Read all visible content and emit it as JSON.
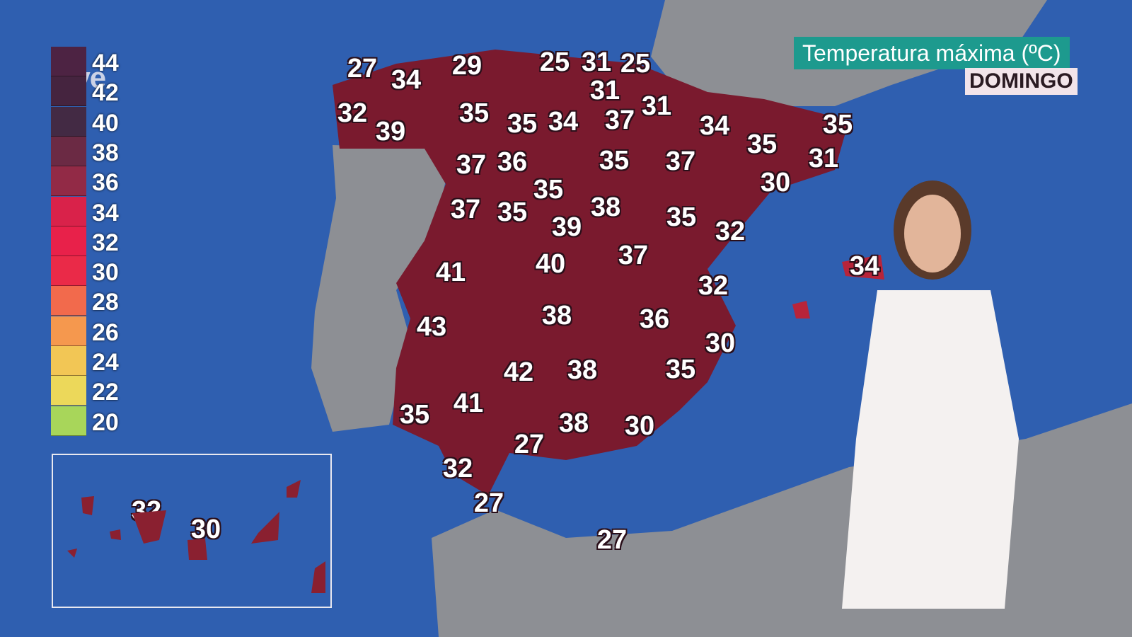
{
  "broadcaster": {
    "logo": "rtve"
  },
  "header": {
    "title": "Temperatura máxima (ºC)",
    "day": "DOMINGO"
  },
  "legend": {
    "ticks": [
      "44",
      "42",
      "40",
      "38",
      "36",
      "34",
      "32",
      "30",
      "28",
      "26",
      "24",
      "22",
      "20"
    ],
    "colors": [
      "#4d2343",
      "#45243f",
      "#432a44",
      "#6b2a44",
      "#922a46",
      "#d9224a",
      "#e8214a",
      "#ea2a48",
      "#f26a4c",
      "#f5984e",
      "#f2c655",
      "#ecd85a",
      "#a8d65a"
    ]
  },
  "map": {
    "temperatures": [
      "27",
      "34",
      "29",
      "25",
      "31",
      "25",
      "31",
      "32",
      "39",
      "35",
      "35",
      "34",
      "37",
      "31",
      "34",
      "35",
      "35",
      "31",
      "30",
      "37",
      "36",
      "35",
      "37",
      "35",
      "38",
      "37",
      "35",
      "39",
      "35",
      "32",
      "41",
      "40",
      "37",
      "34",
      "32",
      "43",
      "38",
      "36",
      "30",
      "42",
      "38",
      "35",
      "35",
      "41",
      "38",
      "30",
      "27",
      "32",
      "27",
      "27"
    ],
    "canarias": [
      "32",
      "30"
    ]
  },
  "colors": {
    "sea": "#2f5fb0",
    "hot": "#7a1a2e",
    "land_gray": "#8d8f94",
    "title_bg": "#1d9a8e"
  }
}
